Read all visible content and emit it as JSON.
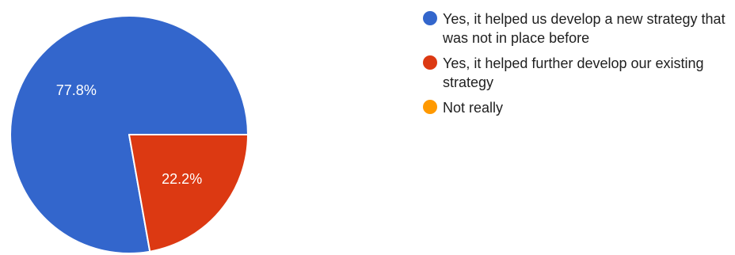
{
  "chart_data": {
    "type": "pie",
    "slices": [
      {
        "label": "Yes, it helped us develop a new strategy that was not in place before",
        "value": 77.8,
        "value_label": "77.8%",
        "color": "#3366cc"
      },
      {
        "label": "Yes, it helped further develop our existing strategy",
        "value": 22.2,
        "value_label": "22.2%",
        "color": "#dc3912"
      },
      {
        "label": "Not really",
        "value": 0,
        "value_label": "",
        "color": "#ff9900"
      }
    ],
    "legend_position": "right"
  }
}
